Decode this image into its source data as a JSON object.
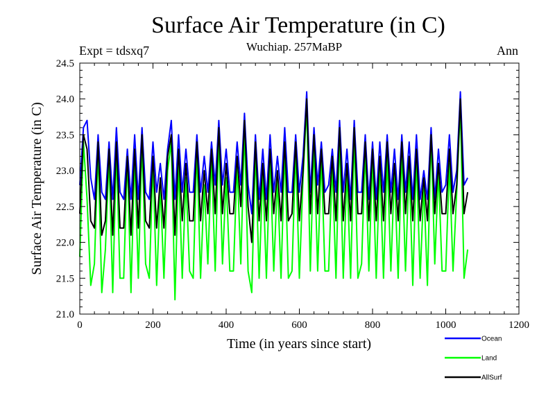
{
  "header": {
    "title": "Surface Air Temperature (in C)",
    "subtitle": "Wuchiap. 257MaBP",
    "experiment": "Expt = tdsxq7",
    "season": "Ann"
  },
  "colors": {
    "ocean": "#0000ff",
    "land": "#00ff00",
    "allsurf": "#000000"
  },
  "chart_data": {
    "type": "line",
    "title": "Surface Air Temperature (in C)",
    "subtitle": "Wuchiap. 257MaBP",
    "xlabel": "Time (in years since start)",
    "ylabel": "Surface Air Temperature (in C)",
    "xlim": [
      0,
      1200
    ],
    "ylim": [
      21.0,
      24.5
    ],
    "xticks": [
      0,
      200,
      400,
      600,
      800,
      1000,
      1200
    ],
    "xtick_labels": [
      "0",
      "200",
      "400",
      "600",
      "800",
      "1000",
      "1200"
    ],
    "yticks": [
      21.0,
      21.5,
      22.0,
      22.5,
      23.0,
      23.5,
      24.0,
      24.5
    ],
    "ytick_labels": [
      "21.0",
      "21.5",
      "22.0",
      "22.5",
      "23.0",
      "23.5",
      "24.0",
      "24.5"
    ],
    "grid": false,
    "legend_position": "bottom-right, outside plot",
    "series": [
      {
        "name": "Ocean",
        "color": "#0000ff",
        "x": [
          0,
          10,
          20,
          30,
          40,
          50,
          60,
          70,
          80,
          90,
          100,
          110,
          120,
          130,
          140,
          150,
          160,
          170,
          180,
          190,
          200,
          210,
          220,
          230,
          240,
          250,
          260,
          270,
          280,
          290,
          300,
          310,
          320,
          330,
          340,
          350,
          360,
          370,
          380,
          390,
          400,
          410,
          420,
          430,
          440,
          450,
          460,
          470,
          480,
          490,
          500,
          510,
          520,
          530,
          540,
          550,
          560,
          570,
          580,
          590,
          600,
          610,
          620,
          630,
          640,
          650,
          660,
          670,
          680,
          690,
          700,
          710,
          720,
          730,
          740,
          750,
          760,
          770,
          780,
          790,
          800,
          810,
          820,
          830,
          840,
          850,
          860,
          870,
          880,
          890,
          900,
          910,
          920,
          930,
          940,
          950,
          960,
          970,
          980,
          990,
          1000,
          1010,
          1020,
          1030,
          1040,
          1050,
          1060
        ],
        "values": [
          22.8,
          23.6,
          23.7,
          22.9,
          22.6,
          23.5,
          22.7,
          22.6,
          23.4,
          22.6,
          23.6,
          22.7,
          22.6,
          23.3,
          22.6,
          23.5,
          22.6,
          23.6,
          22.7,
          22.6,
          23.4,
          22.7,
          23.1,
          22.6,
          23.3,
          23.7,
          22.6,
          23.5,
          22.7,
          23.3,
          22.7,
          22.7,
          23.5,
          22.7,
          23.2,
          22.7,
          23.4,
          22.8,
          23.7,
          22.8,
          23.3,
          22.7,
          22.7,
          23.4,
          22.8,
          23.8,
          22.8,
          22.4,
          23.5,
          22.6,
          23.3,
          22.6,
          23.5,
          22.7,
          23.2,
          22.7,
          23.6,
          22.7,
          22.7,
          23.5,
          22.7,
          23.2,
          24.1,
          22.7,
          23.6,
          22.8,
          23.4,
          22.7,
          22.8,
          23.3,
          22.7,
          23.7,
          22.7,
          23.3,
          22.6,
          23.7,
          22.7,
          22.7,
          23.5,
          22.6,
          23.4,
          22.6,
          23.4,
          22.7,
          23.5,
          22.7,
          23.3,
          22.6,
          23.5,
          22.7,
          23.4,
          22.6,
          23.5,
          22.6,
          23.0,
          22.6,
          23.6,
          22.6,
          23.3,
          22.7,
          22.8,
          23.5,
          22.7,
          23.0,
          24.1,
          22.8,
          22.9
        ]
      },
      {
        "name": "Land",
        "color": "#00ff00",
        "x": [
          0,
          10,
          20,
          30,
          40,
          50,
          60,
          70,
          80,
          90,
          100,
          110,
          120,
          130,
          140,
          150,
          160,
          170,
          180,
          190,
          200,
          210,
          220,
          230,
          240,
          250,
          260,
          270,
          280,
          290,
          300,
          310,
          320,
          330,
          340,
          350,
          360,
          370,
          380,
          390,
          400,
          410,
          420,
          430,
          440,
          450,
          460,
          470,
          480,
          490,
          500,
          510,
          520,
          530,
          540,
          550,
          560,
          570,
          580,
          590,
          600,
          610,
          620,
          630,
          640,
          650,
          660,
          670,
          680,
          690,
          700,
          710,
          720,
          730,
          740,
          750,
          760,
          770,
          780,
          790,
          800,
          810,
          820,
          830,
          840,
          850,
          860,
          870,
          880,
          890,
          900,
          910,
          920,
          930,
          940,
          950,
          960,
          970,
          980,
          990,
          1000,
          1010,
          1020,
          1030,
          1040,
          1050,
          1060
        ],
        "values": [
          21.8,
          23.4,
          22.6,
          21.4,
          21.7,
          23.3,
          21.3,
          21.9,
          23.2,
          21.3,
          23.3,
          21.5,
          21.5,
          23.2,
          21.3,
          23.2,
          21.5,
          23.4,
          21.7,
          21.5,
          23.1,
          21.4,
          22.8,
          21.5,
          23.0,
          23.4,
          21.2,
          23.1,
          21.5,
          22.9,
          21.6,
          21.5,
          23.3,
          21.5,
          22.8,
          21.7,
          23.2,
          21.6,
          23.5,
          21.7,
          22.9,
          21.6,
          21.6,
          23.1,
          21.7,
          23.6,
          21.6,
          21.3,
          23.3,
          21.5,
          23.0,
          21.5,
          23.2,
          21.6,
          22.9,
          21.5,
          23.3,
          21.5,
          21.6,
          23.3,
          21.5,
          22.9,
          23.9,
          21.6,
          23.4,
          21.6,
          23.2,
          21.6,
          21.6,
          23.1,
          21.5,
          23.5,
          21.5,
          23.0,
          21.5,
          23.5,
          21.5,
          21.7,
          23.3,
          21.6,
          23.2,
          21.5,
          23.1,
          21.5,
          23.2,
          21.6,
          23.0,
          21.5,
          23.3,
          21.6,
          23.1,
          21.4,
          23.2,
          21.5,
          22.8,
          21.4,
          23.5,
          21.7,
          23.0,
          21.6,
          21.6,
          23.1,
          21.6,
          22.7,
          23.9,
          21.5,
          21.9
        ]
      },
      {
        "name": "AllSurf",
        "color": "#000000",
        "x": [
          0,
          10,
          20,
          30,
          40,
          50,
          60,
          70,
          80,
          90,
          100,
          110,
          120,
          130,
          140,
          150,
          160,
          170,
          180,
          190,
          200,
          210,
          220,
          230,
          240,
          250,
          260,
          270,
          280,
          290,
          300,
          310,
          320,
          330,
          340,
          350,
          360,
          370,
          380,
          390,
          400,
          410,
          420,
          430,
          440,
          450,
          460,
          470,
          480,
          490,
          500,
          510,
          520,
          530,
          540,
          550,
          560,
          570,
          580,
          590,
          600,
          610,
          620,
          630,
          640,
          650,
          660,
          670,
          680,
          690,
          700,
          710,
          720,
          730,
          740,
          750,
          760,
          770,
          780,
          790,
          800,
          810,
          820,
          830,
          840,
          850,
          860,
          870,
          880,
          890,
          900,
          910,
          920,
          930,
          940,
          950,
          960,
          970,
          980,
          990,
          1000,
          1010,
          1020,
          1030,
          1040,
          1050,
          1060
        ],
        "values": [
          22.4,
          23.5,
          23.3,
          22.3,
          22.2,
          23.4,
          22.1,
          22.3,
          23.3,
          22.1,
          23.4,
          22.2,
          22.2,
          23.2,
          22.1,
          23.3,
          22.2,
          23.5,
          22.3,
          22.2,
          23.2,
          22.2,
          22.9,
          22.2,
          23.2,
          23.5,
          22.1,
          23.3,
          22.3,
          23.1,
          22.3,
          22.3,
          23.4,
          22.3,
          23.0,
          22.4,
          23.3,
          22.4,
          23.6,
          22.4,
          23.1,
          22.4,
          22.4,
          23.2,
          22.5,
          23.7,
          22.5,
          22.0,
          23.4,
          22.3,
          23.1,
          22.3,
          23.3,
          22.4,
          23.0,
          22.3,
          23.4,
          22.3,
          22.4,
          23.4,
          22.3,
          23.0,
          24.0,
          22.4,
          23.5,
          22.4,
          23.3,
          22.4,
          22.4,
          23.2,
          22.3,
          23.6,
          22.3,
          23.1,
          22.3,
          23.6,
          22.4,
          22.4,
          23.4,
          22.3,
          23.3,
          22.3,
          23.2,
          22.3,
          23.4,
          22.4,
          23.1,
          22.3,
          23.4,
          22.4,
          23.2,
          22.3,
          23.3,
          22.3,
          22.9,
          22.3,
          23.5,
          22.4,
          23.1,
          22.4,
          22.4,
          23.3,
          22.4,
          22.8,
          24.0,
          22.4,
          22.7
        ]
      }
    ]
  }
}
